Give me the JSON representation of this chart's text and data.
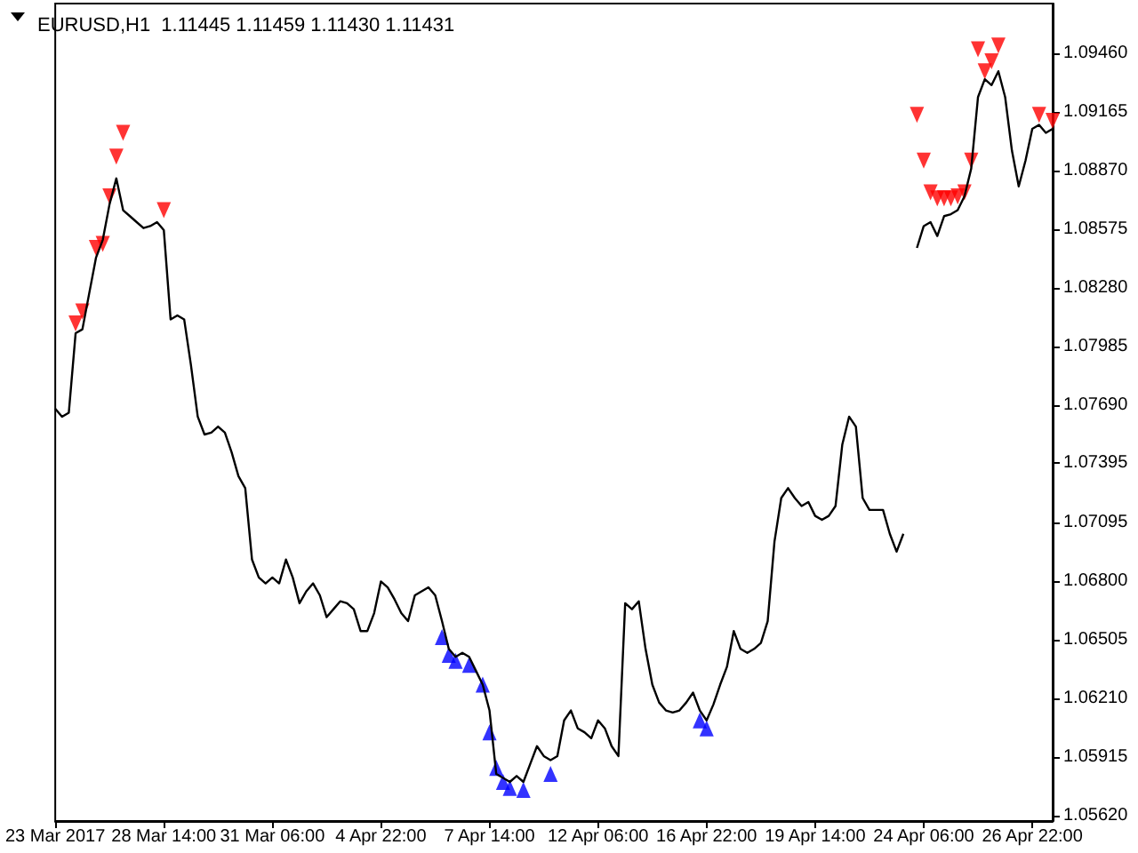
{
  "chart_data": {
    "type": "line",
    "title": "EURUSD,H1  1.11445 1.11459 1.11430 1.11431",
    "categories": [
      "23 Mar 2017",
      null,
      null,
      null,
      null,
      null,
      null,
      null,
      null,
      null,
      null,
      null,
      null,
      null,
      null,
      null,
      "28 Mar 14:00",
      null,
      null,
      null,
      null,
      null,
      null,
      null,
      null,
      null,
      null,
      null,
      null,
      null,
      null,
      null,
      "31 Mar 06:00",
      null,
      null,
      null,
      null,
      null,
      null,
      null,
      null,
      null,
      null,
      null,
      null,
      null,
      null,
      null,
      "4 Apr 22:00",
      null,
      null,
      null,
      null,
      null,
      null,
      null,
      null,
      null,
      null,
      null,
      null,
      null,
      null,
      null,
      "7 Apr 14:00",
      null,
      null,
      null,
      null,
      null,
      null,
      null,
      null,
      null,
      null,
      null,
      null,
      null,
      null,
      null,
      "12 Apr 06:00",
      null,
      null,
      null,
      null,
      null,
      null,
      null,
      null,
      null,
      null,
      null,
      null,
      null,
      null,
      null,
      "16 Apr 22:00",
      null,
      null,
      null,
      null,
      null,
      null,
      null,
      null,
      null,
      null,
      null,
      null,
      null,
      null,
      null,
      "19 Apr 14:00",
      null,
      null,
      null,
      null,
      null,
      null,
      null,
      null,
      null,
      null,
      null,
      null,
      null,
      null,
      null,
      "24 Apr 06:00",
      null,
      null,
      null,
      null,
      null,
      null,
      null,
      null,
      null,
      null,
      null,
      null,
      null,
      null,
      null,
      "26 Apr 22:00",
      null,
      null,
      null
    ],
    "series": [
      {
        "color": "#000000",
        "marker": "none",
        "values": [
          1.0767,
          1.0763,
          1.0765,
          1.0805,
          1.0807,
          1.0825,
          1.0843,
          1.0852,
          1.087,
          1.0883,
          1.0867,
          1.0864,
          1.0861,
          1.0858,
          1.0859,
          1.0861,
          1.0857,
          1.0812,
          1.0814,
          1.0812,
          1.0789,
          1.0763,
          1.0754,
          1.0755,
          1.0758,
          1.0755,
          1.0745,
          1.0733,
          1.0727,
          1.0691,
          1.0682,
          1.0679,
          1.0682,
          1.0679,
          1.0691,
          1.0682,
          1.0669,
          1.0675,
          1.0679,
          1.0673,
          1.0662,
          1.0666,
          1.067,
          1.0669,
          1.0666,
          1.0655,
          1.0655,
          1.0664,
          1.068,
          1.0677,
          1.0671,
          1.0664,
          1.066,
          1.0673,
          1.0675,
          1.0677,
          1.0673,
          1.066,
          1.0646,
          1.0642,
          1.0644,
          1.0642,
          1.0635,
          1.0628,
          1.0615,
          1.0583,
          1.0581,
          1.0579,
          1.0582,
          1.0579,
          1.0588,
          1.0597,
          1.0592,
          1.059,
          1.0592,
          1.061,
          1.0615,
          1.0606,
          1.0604,
          1.0601,
          1.061,
          1.0606,
          1.0597,
          1.0592,
          1.0669,
          1.0666,
          1.067,
          1.0646,
          1.0628,
          1.0619,
          1.0615,
          1.0614,
          1.0615,
          1.0619,
          1.0624,
          1.0615,
          1.061,
          1.0618,
          1.0628,
          1.0637,
          1.0655,
          1.0646,
          1.0644,
          1.0646,
          1.0649,
          1.066,
          1.07,
          1.0722,
          1.0727,
          1.0722,
          1.0718,
          1.072,
          1.0713,
          1.0711,
          1.0713,
          1.0718,
          1.0749,
          1.0763,
          1.0758,
          1.0722,
          1.0716,
          1.0716,
          1.0716,
          1.0704,
          1.0695,
          1.0704,
          null,
          1.0848,
          1.0859,
          1.0861,
          1.0854,
          1.0864,
          1.0865,
          1.0867,
          1.0874,
          1.0888,
          1.0924,
          1.0933,
          1.093,
          1.0937,
          1.0924,
          1.0897,
          1.0879,
          1.0892,
          1.0908,
          1.091,
          1.0906,
          1.0908
        ]
      },
      {
        "type": "scatter",
        "color": "#ff0000",
        "marker": "triangle",
        "values": [
          null,
          null,
          null,
          1.081,
          1.0816,
          null,
          1.0848,
          1.085,
          1.0874,
          1.0894,
          1.0906,
          null,
          null,
          null,
          null,
          null,
          1.0867,
          null,
          null,
          null,
          null,
          null,
          null,
          null,
          null,
          null,
          null,
          null,
          null,
          null,
          null,
          null,
          null,
          null,
          null,
          null,
          null,
          null,
          null,
          null,
          null,
          null,
          null,
          null,
          null,
          null,
          null,
          null,
          null,
          null,
          null,
          null,
          null,
          null,
          null,
          null,
          null,
          null,
          null,
          null,
          null,
          null,
          null,
          null,
          null,
          null,
          null,
          null,
          null,
          null,
          null,
          null,
          null,
          null,
          null,
          null,
          null,
          null,
          null,
          null,
          null,
          null,
          null,
          null,
          null,
          null,
          null,
          null,
          null,
          null,
          null,
          null,
          null,
          null,
          null,
          null,
          null,
          null,
          null,
          null,
          null,
          null,
          null,
          null,
          null,
          null,
          null,
          null,
          null,
          null,
          null,
          null,
          null,
          null,
          null,
          null,
          null,
          null,
          null,
          null,
          null,
          null,
          null,
          null,
          null,
          null,
          null,
          1.0915,
          1.0892,
          1.0876,
          1.0873,
          1.0873,
          1.0873,
          1.0874,
          1.0876,
          1.0892,
          1.0948,
          1.0937,
          1.0942,
          1.095,
          null,
          null,
          null,
          null,
          null,
          1.0915,
          null,
          1.0912
        ]
      },
      {
        "type": "scatter",
        "color": "#0000ff",
        "marker": "triangle",
        "values": [
          null,
          null,
          null,
          null,
          null,
          null,
          null,
          null,
          null,
          null,
          null,
          null,
          null,
          null,
          null,
          null,
          null,
          null,
          null,
          null,
          null,
          null,
          null,
          null,
          null,
          null,
          null,
          null,
          null,
          null,
          null,
          null,
          null,
          null,
          null,
          null,
          null,
          null,
          null,
          null,
          null,
          null,
          null,
          null,
          null,
          null,
          null,
          null,
          null,
          null,
          null,
          null,
          null,
          null,
          null,
          null,
          null,
          1.0652,
          1.0643,
          1.064,
          null,
          1.0638,
          null,
          1.0628,
          1.0604,
          1.0586,
          1.0579,
          1.0576,
          null,
          1.0575,
          null,
          null,
          null,
          1.0583,
          null,
          null,
          null,
          null,
          null,
          null,
          null,
          null,
          null,
          null,
          null,
          null,
          null,
          null,
          null,
          null,
          null,
          null,
          null,
          null,
          null,
          1.061,
          1.0606,
          null,
          null,
          null,
          null,
          null,
          null,
          null,
          null,
          null,
          null,
          null,
          null,
          null,
          null,
          null,
          null,
          null,
          null,
          null,
          null,
          null,
          null,
          null,
          null,
          null,
          null,
          null,
          null,
          null,
          null,
          null,
          null,
          null,
          null,
          null,
          null,
          null,
          null,
          null,
          null,
          null,
          null,
          null,
          null,
          null,
          null,
          null,
          null,
          null,
          null,
          null
        ]
      }
    ],
    "ylim": [
      1.05593,
      1.09711
    ],
    "yticks": [
      {
        "value": 1.0562,
        "label": "1.05620"
      },
      {
        "value": 1.05915,
        "label": "1.05915"
      },
      {
        "value": 1.0621,
        "label": "1.06210"
      },
      {
        "value": 1.06505,
        "label": "1.06505"
      },
      {
        "value": 1.068,
        "label": "1.06800"
      },
      {
        "value": 1.07095,
        "label": "1.07095"
      },
      {
        "value": 1.07395,
        "label": "1.07395"
      },
      {
        "value": 1.0769,
        "label": "1.07690"
      },
      {
        "value": 1.07985,
        "label": "1.07985"
      },
      {
        "value": 1.0828,
        "label": "1.08280"
      },
      {
        "value": 1.08575,
        "label": "1.08575"
      },
      {
        "value": 1.0887,
        "label": "1.08870"
      },
      {
        "value": 1.09165,
        "label": "1.09165"
      },
      {
        "value": 1.0946,
        "label": "1.09460"
      }
    ],
    "grid": false
  }
}
